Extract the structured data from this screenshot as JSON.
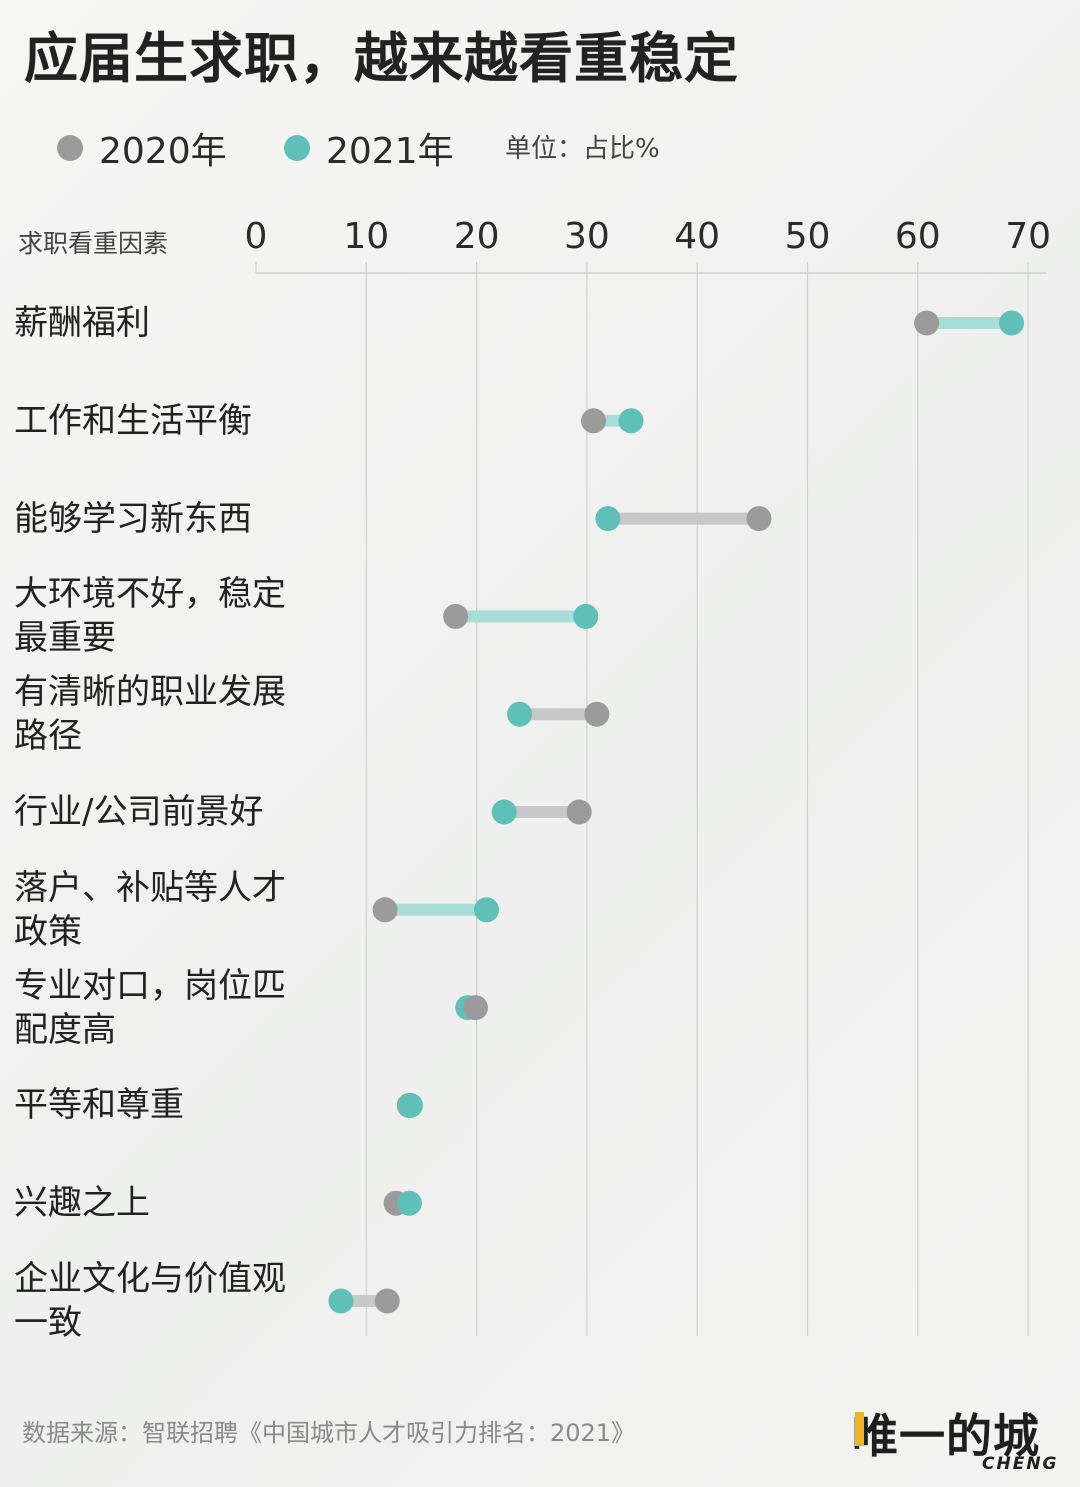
{
  "title": "应届生求职，越来越看重稳定",
  "legend": {
    "items": [
      {
        "label": "2020年",
        "color": "#9b9b9b"
      },
      {
        "label": "2021年",
        "color": "#5ec0b8"
      }
    ],
    "unit": "单位：占比%"
  },
  "source": "数据来源：智联招聘《中国城市人才吸引力排名：2021》",
  "logo": {
    "cn": "唯一的城",
    "en": "CHENG"
  },
  "chart_data": {
    "type": "dumbbell",
    "ylabel": "求职看重因素",
    "xlim": [
      0,
      70
    ],
    "xticks": [
      0,
      10,
      20,
      30,
      40,
      50,
      60,
      70
    ],
    "grid": true,
    "series_names": [
      "2020年",
      "2021年"
    ],
    "categories": [
      {
        "name": [
          "薪酬福利"
        ],
        "v2020": 60.8,
        "v2021": 68.5
      },
      {
        "name": [
          "工作和生活平衡"
        ],
        "v2020": 30.6,
        "v2021": 34.0
      },
      {
        "name": [
          "能够学习新东西"
        ],
        "v2020": 45.6,
        "v2021": 31.9
      },
      {
        "name": [
          "大环境不好，稳定",
          "最重要"
        ],
        "v2020": 18.1,
        "v2021": 29.9
      },
      {
        "name": [
          "有清晰的职业发展",
          "路径"
        ],
        "v2020": 30.9,
        "v2021": 23.9
      },
      {
        "name": [
          "行业/公司前景好"
        ],
        "v2020": 29.3,
        "v2021": 22.5
      },
      {
        "name": [
          "落户、补贴等人才",
          "政策"
        ],
        "v2020": 11.7,
        "v2021": 20.9
      },
      {
        "name": [
          "专业对口，岗位匹",
          "配度高"
        ],
        "v2020": 19.9,
        "v2021": 19.2
      },
      {
        "name": [
          "平等和尊重"
        ],
        "v2020": 13.9,
        "v2021": 14.0
      },
      {
        "name": [
          "兴趣之上"
        ],
        "v2020": 12.7,
        "v2021": 13.9
      },
      {
        "name": [
          "企业文化与价值观",
          "一致"
        ],
        "v2020": 11.9,
        "v2021": 7.7
      }
    ]
  }
}
